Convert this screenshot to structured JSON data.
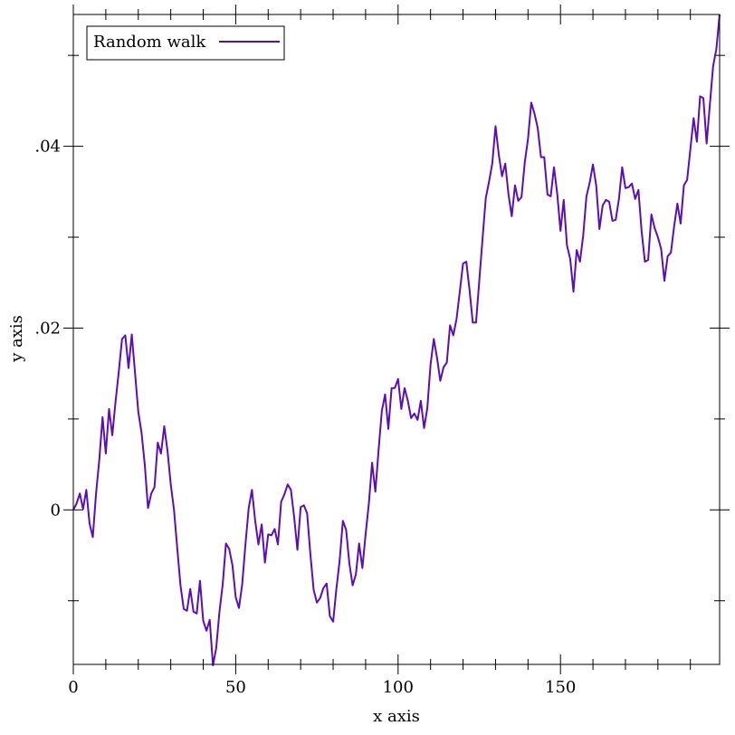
{
  "chart_data": {
    "type": "line",
    "title": "",
    "xlabel": "x axis",
    "ylabel": "y axis",
    "xlim": [
      0,
      199
    ],
    "ylim": [
      -0.017,
      0.0545
    ],
    "x_ticks": [
      0,
      50,
      100,
      150
    ],
    "x_tick_labels": [
      "0",
      "50",
      "100",
      "150"
    ],
    "y_ticks": [
      0,
      0.02,
      0.04
    ],
    "y_tick_labels": [
      "0",
      ".02",
      ".04"
    ],
    "grid": false,
    "legend": {
      "position": "top-left",
      "entries": [
        "Random walk"
      ]
    },
    "series": [
      {
        "name": "Random walk",
        "color": "#5b0fb3",
        "x_start": 0,
        "x_step": 1,
        "values": [
          0.0,
          0.0007,
          0.0018,
          0.0001,
          0.0022,
          -0.0015,
          -0.003,
          0.0018,
          0.0055,
          0.0102,
          0.0062,
          0.0111,
          0.0082,
          0.0119,
          0.0152,
          0.0188,
          0.0192,
          0.0156,
          0.0193,
          0.0151,
          0.0108,
          0.0085,
          0.005,
          0.0002,
          0.0018,
          0.0025,
          0.0074,
          0.0062,
          0.0092,
          0.0065,
          0.0028,
          0.0,
          -0.0042,
          -0.0083,
          -0.0109,
          -0.0111,
          -0.0087,
          -0.0112,
          -0.0114,
          -0.0078,
          -0.0122,
          -0.0133,
          -0.0121,
          -0.0171,
          -0.0152,
          -0.0112,
          -0.0082,
          -0.0037,
          -0.0043,
          -0.0061,
          -0.0096,
          -0.0108,
          -0.0082,
          -0.0038,
          0.0002,
          0.0022,
          -0.0012,
          -0.0038,
          -0.0016,
          -0.0058,
          -0.0027,
          -0.0028,
          -0.0021,
          -0.0038,
          0.0009,
          0.0017,
          0.0028,
          0.0022,
          -0.0008,
          -0.0044,
          0.0003,
          0.0005,
          -0.0004,
          -0.0049,
          -0.0088,
          -0.0102,
          -0.0097,
          -0.0086,
          -0.0081,
          -0.0117,
          -0.0123,
          -0.0087,
          -0.0056,
          -0.0012,
          -0.0022,
          -0.0059,
          -0.0083,
          -0.0071,
          -0.0037,
          -0.0064,
          -0.0027,
          0.0007,
          0.0052,
          0.002,
          0.0066,
          0.0109,
          0.0127,
          0.0089,
          0.0134,
          0.0134,
          0.0144,
          0.0111,
          0.0134,
          0.012,
          0.0101,
          0.0106,
          0.0099,
          0.012,
          0.009,
          0.0112,
          0.016,
          0.0188,
          0.0167,
          0.0142,
          0.0157,
          0.0162,
          0.0203,
          0.0192,
          0.021,
          0.024,
          0.0271,
          0.0273,
          0.0242,
          0.0206,
          0.0206,
          0.0252,
          0.0298,
          0.0343,
          0.0361,
          0.0381,
          0.0422,
          0.0391,
          0.0367,
          0.0381,
          0.0347,
          0.0323,
          0.0357,
          0.034,
          0.0344,
          0.0382,
          0.0408,
          0.0448,
          0.0436,
          0.042,
          0.0388,
          0.0388,
          0.0347,
          0.0345,
          0.0377,
          0.0348,
          0.0307,
          0.0341,
          0.0291,
          0.0276,
          0.024,
          0.0286,
          0.0273,
          0.0302,
          0.0345,
          0.036,
          0.038,
          0.0357,
          0.0309,
          0.0335,
          0.0341,
          0.0339,
          0.0318,
          0.0319,
          0.0342,
          0.0377,
          0.0354,
          0.0355,
          0.0359,
          0.0342,
          0.0352,
          0.0306,
          0.0273,
          0.0275,
          0.0325,
          0.031,
          0.03,
          0.0287,
          0.0252,
          0.0279,
          0.0283,
          0.0312,
          0.0337,
          0.0315,
          0.0357,
          0.0363,
          0.0397,
          0.0431,
          0.0405,
          0.0455,
          0.0453,
          0.0403,
          0.0446,
          0.0488,
          0.0507,
          0.0545
        ]
      }
    ]
  }
}
